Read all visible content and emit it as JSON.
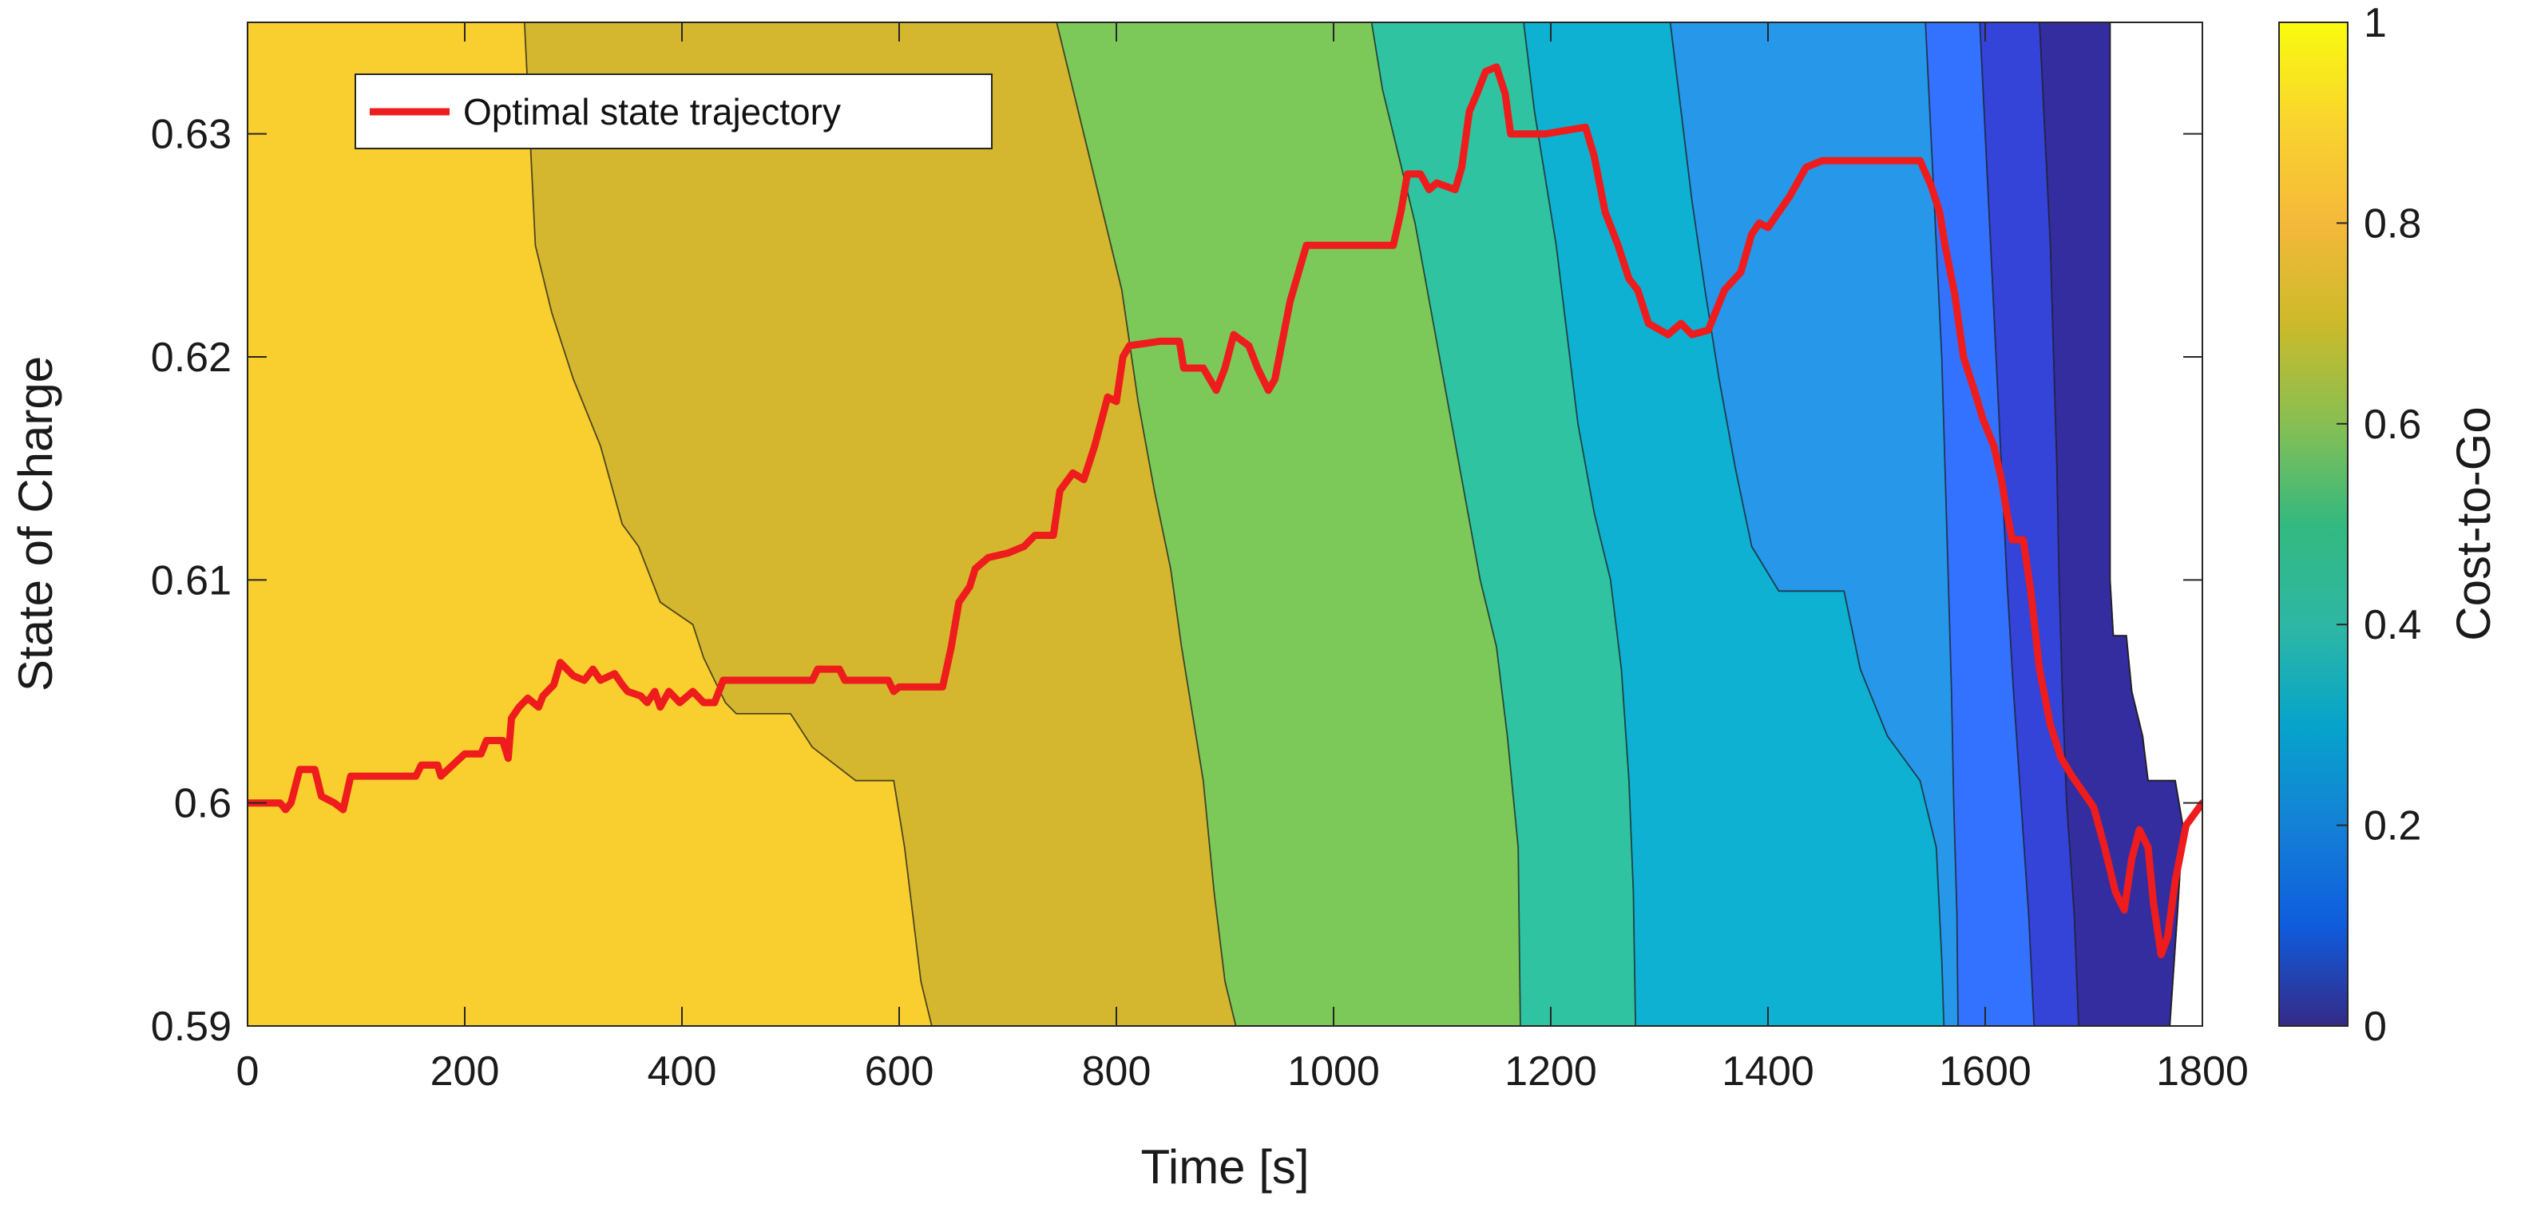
{
  "chart_data": {
    "type": "contour",
    "xlabel": "Time [s]",
    "ylabel": "State of Charge",
    "xlim": [
      0,
      1800
    ],
    "ylim": [
      0.59,
      0.635
    ],
    "xticks": [
      0,
      200,
      400,
      600,
      800,
      1000,
      1200,
      1400,
      1600,
      1800
    ],
    "xtick_labels": [
      "0",
      "200",
      "400",
      "600",
      "800",
      "1000",
      "1200",
      "1400",
      "1600",
      "1800"
    ],
    "yticks": [
      0.59,
      0.6,
      0.61,
      0.62,
      0.63
    ],
    "ytick_labels": [
      "0.59",
      "0.6",
      "0.61",
      "0.62",
      "0.63"
    ],
    "colorbar": {
      "label": "Cost-to-Go",
      "range": [
        0,
        1
      ],
      "ticks": [
        0,
        0.2,
        0.4,
        0.6,
        0.8,
        1
      ],
      "tick_labels": [
        "0",
        "0.2",
        "0.4",
        "0.6",
        "0.8",
        "1"
      ]
    },
    "legend": {
      "entries": [
        "Optimal state trajectory"
      ],
      "location": "top-left"
    },
    "contour_levels": [
      {
        "value": 0.9,
        "color": "#F9CF2F"
      },
      {
        "value": 0.75,
        "color": "#D4B72E"
      },
      {
        "value": 0.62,
        "color": "#7CC95A"
      },
      {
        "value": 0.52,
        "color": "#2FC3A1"
      },
      {
        "value": 0.42,
        "color": "#0EB1D1"
      },
      {
        "value": 0.32,
        "color": "#2697E9"
      },
      {
        "value": 0.22,
        "color": "#3372FE"
      },
      {
        "value": 0.12,
        "color": "#3443D8"
      },
      {
        "value": 0.05,
        "color": "#342DA0"
      }
    ],
    "boundaries": [
      [
        [
          255,
          0.635
        ],
        [
          265,
          0.625
        ],
        [
          280,
          0.622
        ],
        [
          300,
          0.619
        ],
        [
          325,
          0.616
        ],
        [
          345,
          0.6125
        ],
        [
          360,
          0.6115
        ],
        [
          380,
          0.609
        ],
        [
          410,
          0.608
        ],
        [
          420,
          0.6065
        ],
        [
          440,
          0.6045
        ],
        [
          450,
          0.604
        ],
        [
          500,
          0.604
        ],
        [
          520,
          0.6025
        ],
        [
          560,
          0.601
        ],
        [
          595,
          0.601
        ],
        [
          605,
          0.598
        ],
        [
          620,
          0.592
        ],
        [
          630,
          0.59
        ]
      ],
      [
        [
          745,
          0.635
        ],
        [
          760,
          0.632
        ],
        [
          775,
          0.629
        ],
        [
          790,
          0.626
        ],
        [
          805,
          0.623
        ],
        [
          820,
          0.618
        ],
        [
          835,
          0.614
        ],
        [
          850,
          0.6105
        ],
        [
          860,
          0.607
        ],
        [
          870,
          0.604
        ],
        [
          880,
          0.601
        ],
        [
          890,
          0.596
        ],
        [
          900,
          0.592
        ],
        [
          910,
          0.59
        ]
      ],
      [
        [
          1035,
          0.635
        ],
        [
          1045,
          0.632
        ],
        [
          1060,
          0.629
        ],
        [
          1075,
          0.626
        ],
        [
          1090,
          0.622
        ],
        [
          1105,
          0.618
        ],
        [
          1120,
          0.614
        ],
        [
          1135,
          0.61
        ],
        [
          1150,
          0.607
        ],
        [
          1160,
          0.603
        ],
        [
          1170,
          0.598
        ],
        [
          1172,
          0.59
        ]
      ],
      [
        [
          1175,
          0.635
        ],
        [
          1185,
          0.631
        ],
        [
          1195,
          0.628
        ],
        [
          1205,
          0.625
        ],
        [
          1215,
          0.621
        ],
        [
          1225,
          0.617
        ],
        [
          1240,
          0.613
        ],
        [
          1255,
          0.61
        ],
        [
          1265,
          0.606
        ],
        [
          1272,
          0.601
        ],
        [
          1276,
          0.596
        ],
        [
          1278,
          0.59
        ]
      ],
      [
        [
          1310,
          0.635
        ],
        [
          1320,
          0.631
        ],
        [
          1330,
          0.627
        ],
        [
          1342,
          0.623
        ],
        [
          1355,
          0.619
        ],
        [
          1370,
          0.615
        ],
        [
          1385,
          0.6115
        ],
        [
          1410,
          0.6095
        ],
        [
          1470,
          0.6095
        ],
        [
          1485,
          0.606
        ],
        [
          1510,
          0.603
        ],
        [
          1540,
          0.601
        ],
        [
          1555,
          0.598
        ],
        [
          1560,
          0.593
        ],
        [
          1562,
          0.59
        ]
      ],
      [
        [
          1545,
          0.635
        ],
        [
          1550,
          0.63
        ],
        [
          1555,
          0.625
        ],
        [
          1560,
          0.62
        ],
        [
          1563,
          0.615
        ],
        [
          1566,
          0.61
        ],
        [
          1569,
          0.605
        ],
        [
          1571,
          0.6
        ],
        [
          1574,
          0.595
        ],
        [
          1575,
          0.59
        ]
      ],
      [
        [
          1595,
          0.635
        ],
        [
          1600,
          0.63
        ],
        [
          1605,
          0.625
        ],
        [
          1610,
          0.62
        ],
        [
          1615,
          0.615
        ],
        [
          1620,
          0.61
        ],
        [
          1626,
          0.605
        ],
        [
          1633,
          0.6
        ],
        [
          1640,
          0.595
        ],
        [
          1645,
          0.59
        ]
      ],
      [
        [
          1650,
          0.635
        ],
        [
          1655,
          0.63
        ],
        [
          1660,
          0.625
        ],
        [
          1663,
          0.62
        ],
        [
          1666,
          0.615
        ],
        [
          1668,
          0.61
        ],
        [
          1671,
          0.605
        ],
        [
          1675,
          0.6
        ],
        [
          1682,
          0.595
        ],
        [
          1686,
          0.59
        ]
      ],
      [
        [
          1715,
          0.635
        ],
        [
          1715,
          0.61
        ],
        [
          1718,
          0.6075
        ],
        [
          1730,
          0.6075
        ],
        [
          1735,
          0.605
        ],
        [
          1745,
          0.603
        ],
        [
          1750,
          0.601
        ],
        [
          1775,
          0.601
        ],
        [
          1782,
          0.599
        ],
        [
          1777,
          0.595
        ],
        [
          1770,
          0.59
        ]
      ]
    ],
    "series": [
      {
        "name": "Optimal state trajectory",
        "color": "#EE1C1C",
        "points": [
          [
            0,
            0.6
          ],
          [
            30,
            0.6
          ],
          [
            35,
            0.5997
          ],
          [
            40,
            0.6
          ],
          [
            48,
            0.6015
          ],
          [
            62,
            0.6015
          ],
          [
            68,
            0.6003
          ],
          [
            80,
            0.6
          ],
          [
            88,
            0.5997
          ],
          [
            95,
            0.6012
          ],
          [
            155,
            0.6012
          ],
          [
            160,
            0.6017
          ],
          [
            175,
            0.6017
          ],
          [
            178,
            0.6012
          ],
          [
            200,
            0.6022
          ],
          [
            215,
            0.6022
          ],
          [
            220,
            0.6028
          ],
          [
            235,
            0.6028
          ],
          [
            240,
            0.602
          ],
          [
            243,
            0.6038
          ],
          [
            250,
            0.6043
          ],
          [
            258,
            0.6047
          ],
          [
            268,
            0.6043
          ],
          [
            272,
            0.6048
          ],
          [
            282,
            0.6053
          ],
          [
            288,
            0.6063
          ],
          [
            300,
            0.6057
          ],
          [
            310,
            0.6055
          ],
          [
            318,
            0.606
          ],
          [
            325,
            0.6055
          ],
          [
            338,
            0.6058
          ],
          [
            345,
            0.6053
          ],
          [
            350,
            0.605
          ],
          [
            362,
            0.6048
          ],
          [
            368,
            0.6045
          ],
          [
            375,
            0.605
          ],
          [
            380,
            0.6043
          ],
          [
            388,
            0.605
          ],
          [
            398,
            0.6045
          ],
          [
            410,
            0.605
          ],
          [
            420,
            0.6045
          ],
          [
            430,
            0.6045
          ],
          [
            438,
            0.6055
          ],
          [
            520,
            0.6055
          ],
          [
            525,
            0.606
          ],
          [
            545,
            0.606
          ],
          [
            550,
            0.6055
          ],
          [
            590,
            0.6055
          ],
          [
            595,
            0.605
          ],
          [
            600,
            0.6052
          ],
          [
            640,
            0.6052
          ],
          [
            648,
            0.607
          ],
          [
            655,
            0.609
          ],
          [
            665,
            0.6097
          ],
          [
            670,
            0.6105
          ],
          [
            682,
            0.611
          ],
          [
            700,
            0.6112
          ],
          [
            715,
            0.6115
          ],
          [
            725,
            0.612
          ],
          [
            742,
            0.612
          ],
          [
            748,
            0.614
          ],
          [
            760,
            0.6148
          ],
          [
            770,
            0.6145
          ],
          [
            780,
            0.616
          ],
          [
            792,
            0.6182
          ],
          [
            800,
            0.618
          ],
          [
            806,
            0.62
          ],
          [
            812,
            0.6205
          ],
          [
            840,
            0.6207
          ],
          [
            858,
            0.6207
          ],
          [
            862,
            0.6195
          ],
          [
            880,
            0.6195
          ],
          [
            892,
            0.6185
          ],
          [
            900,
            0.6195
          ],
          [
            908,
            0.621
          ],
          [
            922,
            0.6205
          ],
          [
            930,
            0.6195
          ],
          [
            940,
            0.6185
          ],
          [
            946,
            0.619
          ],
          [
            952,
            0.6205
          ],
          [
            960,
            0.6225
          ],
          [
            975,
            0.625
          ],
          [
            1055,
            0.625
          ],
          [
            1062,
            0.6265
          ],
          [
            1068,
            0.6282
          ],
          [
            1080,
            0.6282
          ],
          [
            1088,
            0.6275
          ],
          [
            1095,
            0.6278
          ],
          [
            1112,
            0.6275
          ],
          [
            1118,
            0.6285
          ],
          [
            1125,
            0.631
          ],
          [
            1132,
            0.6318
          ],
          [
            1140,
            0.6328
          ],
          [
            1150,
            0.633
          ],
          [
            1158,
            0.6318
          ],
          [
            1163,
            0.63
          ],
          [
            1195,
            0.63
          ],
          [
            1232,
            0.6303
          ],
          [
            1240,
            0.629
          ],
          [
            1250,
            0.6265
          ],
          [
            1262,
            0.625
          ],
          [
            1272,
            0.6235
          ],
          [
            1280,
            0.623
          ],
          [
            1290,
            0.6215
          ],
          [
            1308,
            0.621
          ],
          [
            1320,
            0.6215
          ],
          [
            1330,
            0.621
          ],
          [
            1345,
            0.6212
          ],
          [
            1360,
            0.623
          ],
          [
            1375,
            0.6238
          ],
          [
            1385,
            0.6255
          ],
          [
            1392,
            0.626
          ],
          [
            1400,
            0.6258
          ],
          [
            1410,
            0.6265
          ],
          [
            1420,
            0.6272
          ],
          [
            1435,
            0.6285
          ],
          [
            1450,
            0.6288
          ],
          [
            1530,
            0.6288
          ],
          [
            1540,
            0.6288
          ],
          [
            1550,
            0.6277
          ],
          [
            1558,
            0.6265
          ],
          [
            1563,
            0.625
          ],
          [
            1572,
            0.6228
          ],
          [
            1580,
            0.62
          ],
          [
            1590,
            0.6185
          ],
          [
            1598,
            0.6172
          ],
          [
            1608,
            0.616
          ],
          [
            1615,
            0.6145
          ],
          [
            1620,
            0.613
          ],
          [
            1625,
            0.6118
          ],
          [
            1635,
            0.6118
          ],
          [
            1642,
            0.6095
          ],
          [
            1650,
            0.606
          ],
          [
            1660,
            0.6035
          ],
          [
            1670,
            0.602
          ],
          [
            1680,
            0.6012
          ],
          [
            1690,
            0.6005
          ],
          [
            1700,
            0.5998
          ],
          [
            1710,
            0.598
          ],
          [
            1720,
            0.596
          ],
          [
            1728,
            0.5952
          ],
          [
            1735,
            0.5975
          ],
          [
            1742,
            0.5988
          ],
          [
            1750,
            0.598
          ],
          [
            1755,
            0.5955
          ],
          [
            1762,
            0.5932
          ],
          [
            1768,
            0.594
          ],
          [
            1775,
            0.5965
          ],
          [
            1785,
            0.599
          ],
          [
            1800,
            0.6
          ]
        ]
      }
    ]
  }
}
